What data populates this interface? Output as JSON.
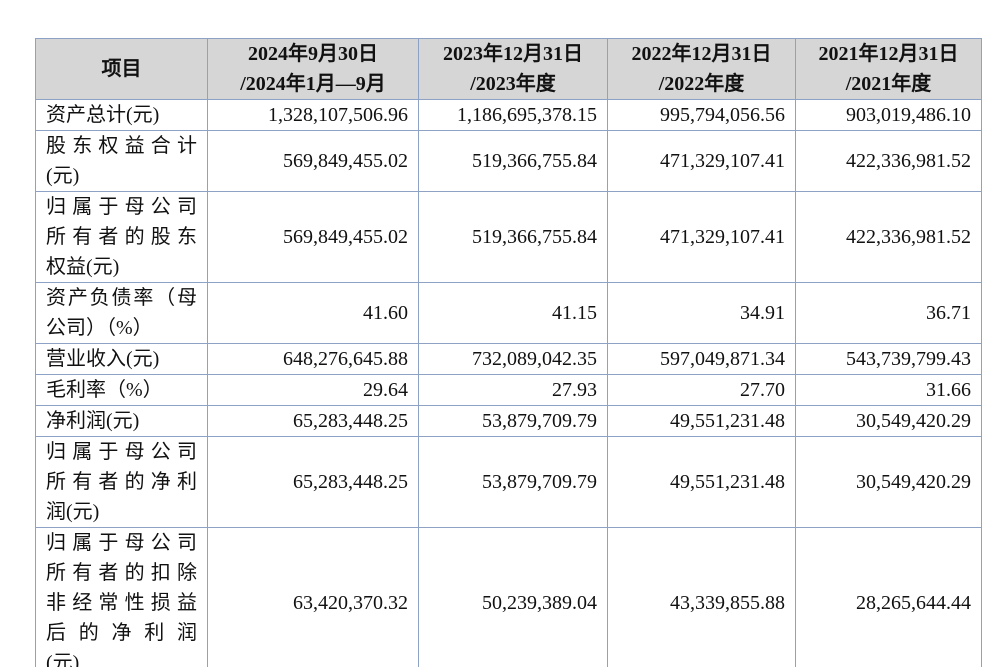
{
  "table": {
    "header": [
      [
        "项目"
      ],
      [
        "2024年9月30日",
        "/2024年1月—9月"
      ],
      [
        "2023年12月31日",
        "/2023年度"
      ],
      [
        "2022年12月31日",
        "/2022年度"
      ],
      [
        "2021年12月31日",
        "/2021年度"
      ]
    ],
    "rows": [
      {
        "label": [
          "资产总计(元)"
        ],
        "values": [
          "1,328,107,506.96",
          "1,186,695,378.15",
          "995,794,056.56",
          "903,019,486.10"
        ]
      },
      {
        "label": [
          "股东权益合计",
          "(元)"
        ],
        "values": [
          "569,849,455.02",
          "519,366,755.84",
          "471,329,107.41",
          "422,336,981.52"
        ]
      },
      {
        "label": [
          "归属于母公司",
          "所有者的股东",
          "权益(元)"
        ],
        "values": [
          "569,849,455.02",
          "519,366,755.84",
          "471,329,107.41",
          "422,336,981.52"
        ]
      },
      {
        "label": [
          "资产负债率（母",
          "公司）（%）"
        ],
        "values": [
          "41.60",
          "41.15",
          "34.91",
          "36.71"
        ]
      },
      {
        "label": [
          "营业收入(元)"
        ],
        "values": [
          "648,276,645.88",
          "732,089,042.35",
          "597,049,871.34",
          "543,739,799.43"
        ]
      },
      {
        "label": [
          "毛利率（%）"
        ],
        "values": [
          "29.64",
          "27.93",
          "27.70",
          "31.66"
        ]
      },
      {
        "label": [
          "净利润(元)"
        ],
        "values": [
          "65,283,448.25",
          "53,879,709.79",
          "49,551,231.48",
          "30,549,420.29"
        ]
      },
      {
        "label": [
          "归属于母公司",
          "所有者的净利",
          "润(元)"
        ],
        "values": [
          "65,283,448.25",
          "53,879,709.79",
          "49,551,231.48",
          "30,549,420.29"
        ]
      },
      {
        "label": [
          "归属于母公司",
          "所有者的扣除",
          "非经常性损益",
          "后的净利润",
          "(元)"
        ],
        "values": [
          "63,420,370.32",
          "50,239,389.04",
          "43,339,855.88",
          "28,265,644.44"
        ]
      }
    ]
  }
}
